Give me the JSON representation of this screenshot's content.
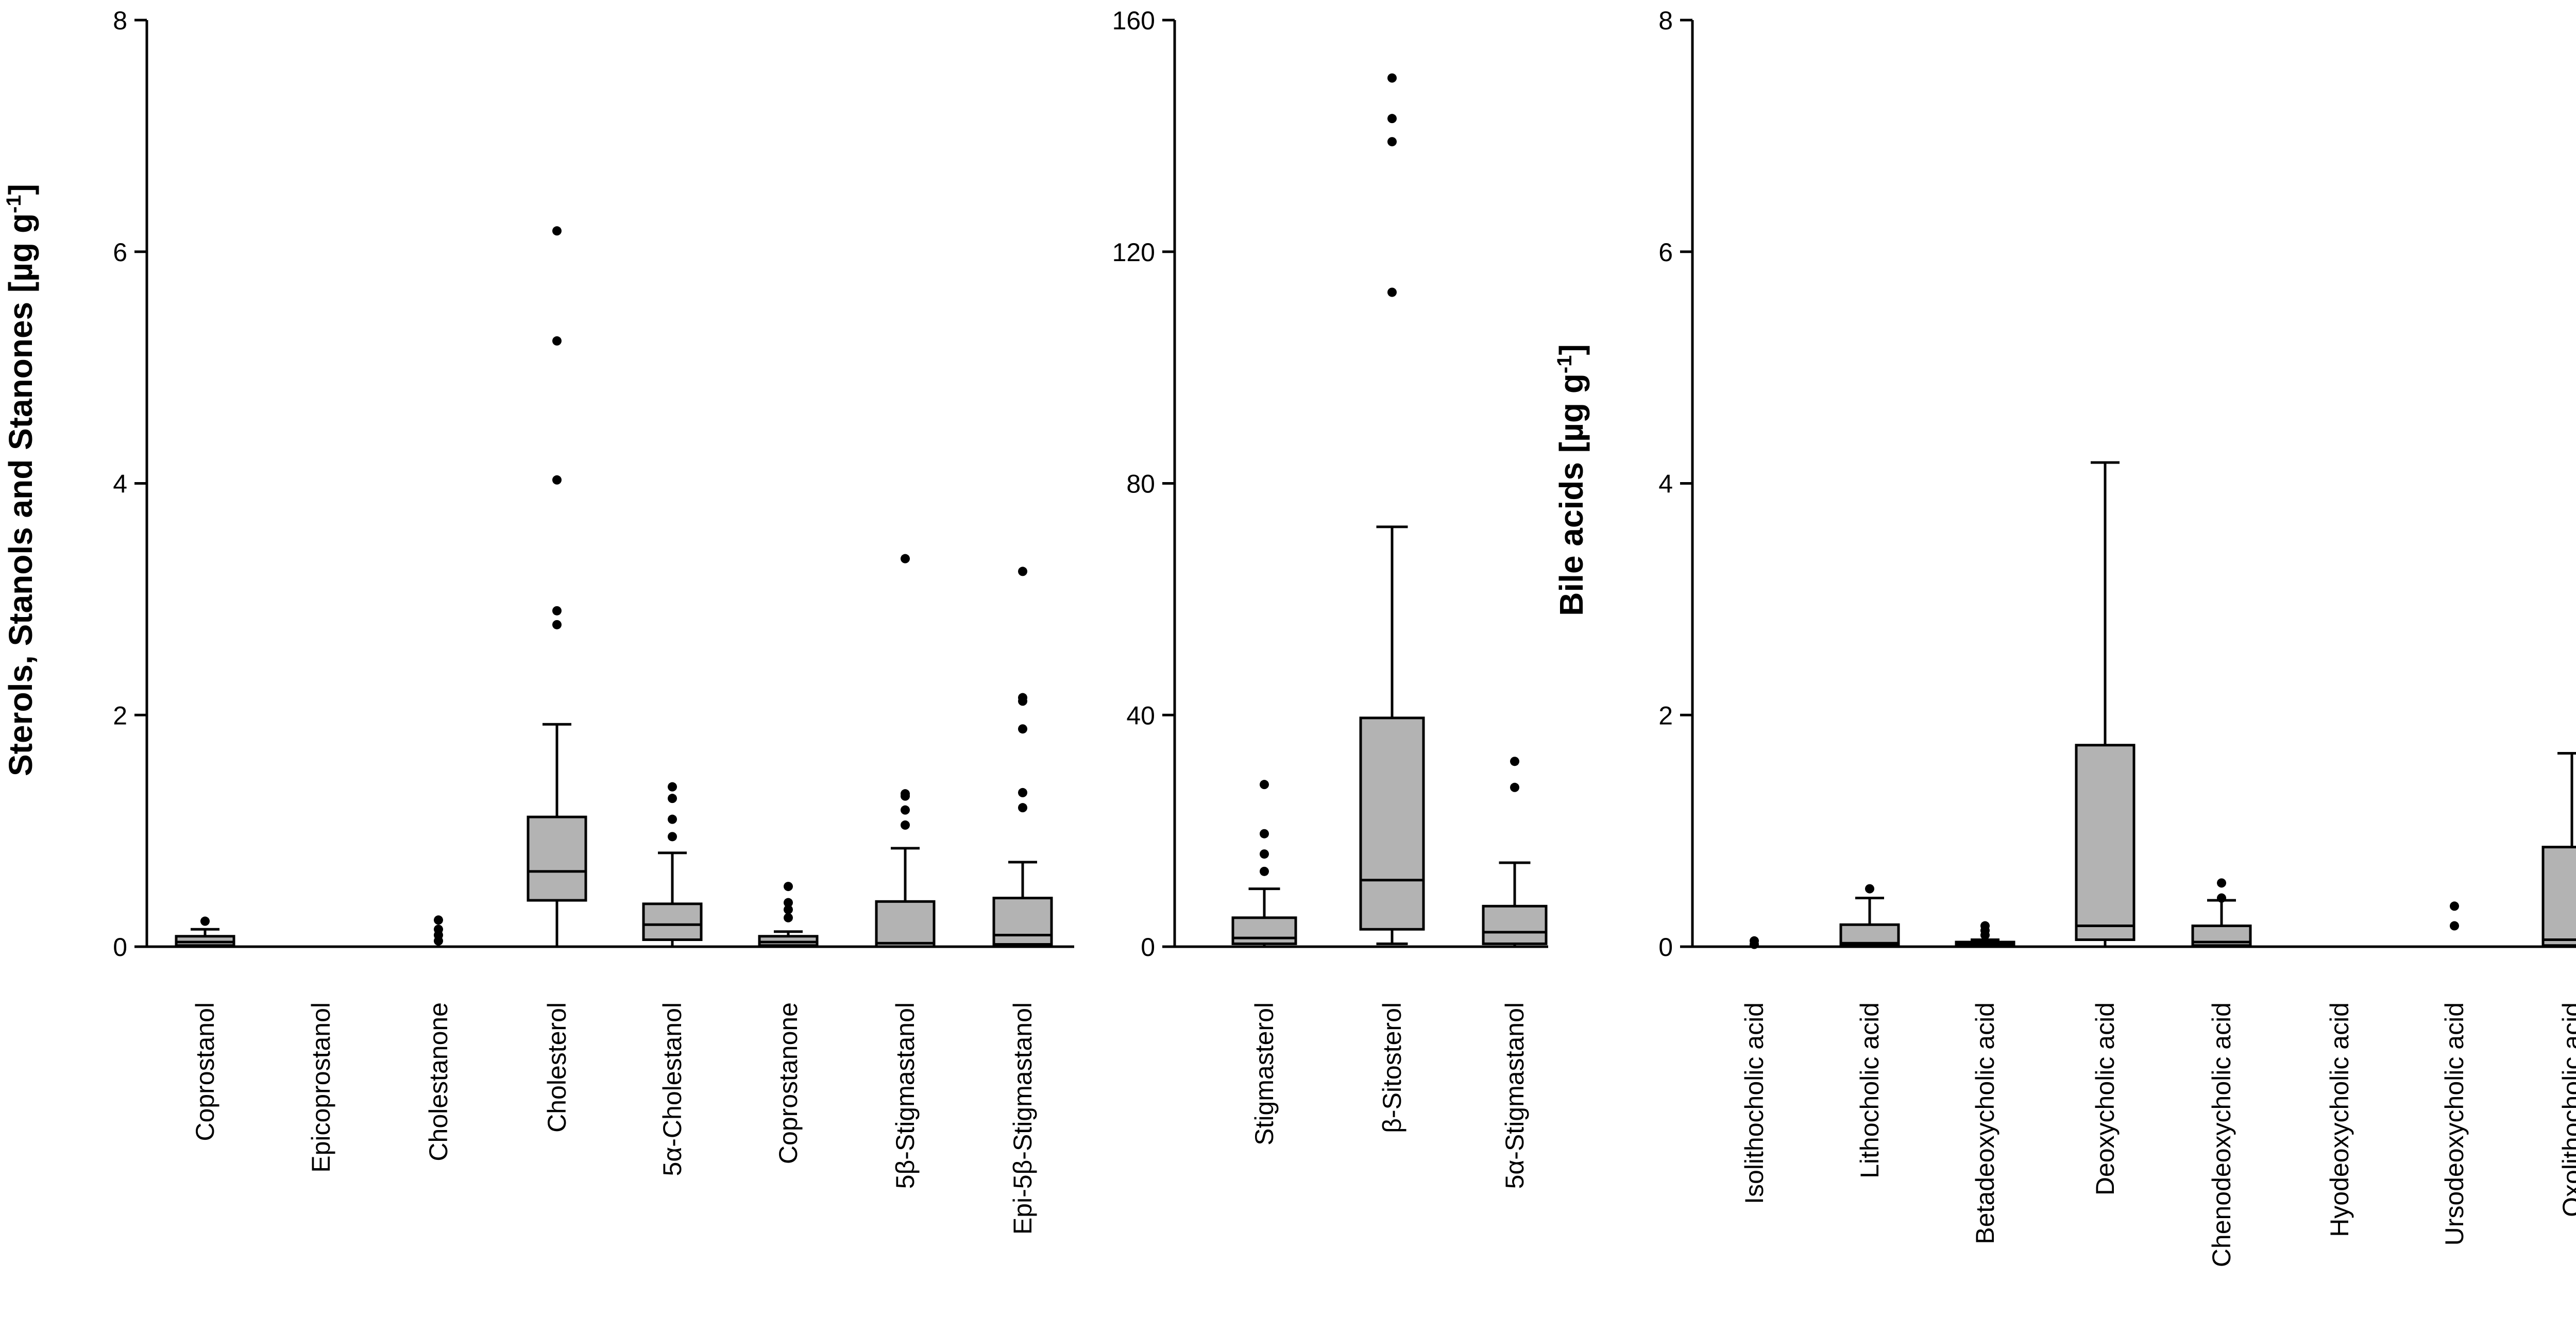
{
  "chart_data": [
    {
      "type": "box",
      "ylabel": "Sterols, Stanols and Stanones [µg g-1]",
      "ylabel_main": "Sterols, Stanols and Stanones [µg g",
      "ylabel_sup": "-1",
      "ylabel_end": "]",
      "ylim": [
        0,
        8
      ],
      "yticks": [
        0,
        2,
        4,
        6,
        8
      ],
      "ytick_labels": [
        "0",
        "2",
        "4",
        "6",
        "8"
      ],
      "boxes": [
        {
          "category": "Coprostanol",
          "whisker_low": 0,
          "q1": 0.01,
          "median": 0.04,
          "q3": 0.09,
          "whisker_high": 0.15,
          "outliers": [
            0.22
          ]
        },
        {
          "category": "Epicoprostanol",
          "whisker_low": 0,
          "q1": 0,
          "median": 0,
          "q3": 0,
          "whisker_high": 0,
          "outliers": []
        },
        {
          "category": "Cholestanone",
          "whisker_low": 0,
          "q1": 0,
          "median": 0,
          "q3": 0,
          "whisker_high": 0,
          "outliers": [
            0.05,
            0.1,
            0.15,
            0.23
          ]
        },
        {
          "category": "Cholesterol",
          "whisker_low": 0,
          "q1": 0.4,
          "median": 0.65,
          "q3": 1.12,
          "whisker_high": 1.92,
          "outliers": [
            2.78,
            2.9,
            4.03,
            5.23,
            6.18
          ]
        },
        {
          "category": "5α-Cholestanol",
          "whisker_low": 0,
          "q1": 0.06,
          "median": 0.19,
          "q3": 0.37,
          "whisker_high": 0.81,
          "outliers": [
            0.95,
            1.1,
            1.28,
            1.38
          ]
        },
        {
          "category": "Coprostanone",
          "whisker_low": 0,
          "q1": 0.01,
          "median": 0.04,
          "q3": 0.09,
          "whisker_high": 0.13,
          "outliers": [
            0.25,
            0.32,
            0.38,
            0.52
          ]
        },
        {
          "category": "5β-Stigmastanol",
          "whisker_low": 0,
          "q1": 0,
          "median": 0.03,
          "q3": 0.39,
          "whisker_high": 0.85,
          "outliers": [
            1.05,
            1.18,
            1.3,
            1.32,
            3.35
          ]
        },
        {
          "category": "Epi-5β-Stigmastanol",
          "whisker_low": 0,
          "q1": 0.02,
          "median": 0.1,
          "q3": 0.42,
          "whisker_high": 0.73,
          "outliers": [
            1.2,
            1.33,
            1.88,
            2.12,
            2.15,
            3.24
          ]
        }
      ]
    },
    {
      "type": "box",
      "ylabel": "",
      "ylim": [
        0,
        160
      ],
      "yticks": [
        0,
        40,
        80,
        120,
        160
      ],
      "ytick_labels": [
        "0",
        "40",
        "80",
        "120",
        "160"
      ],
      "boxes": [
        {
          "category": "Stigmasterol",
          "whisker_low": 0,
          "q1": 0.5,
          "median": 1.5,
          "q3": 5,
          "whisker_high": 10,
          "outliers": [
            13,
            16,
            19.5,
            28
          ]
        },
        {
          "category": "β-Sitosterol",
          "whisker_low": 0.5,
          "q1": 3,
          "median": 11.5,
          "q3": 39.5,
          "whisker_high": 72.5,
          "outliers": [
            113,
            139,
            143,
            150
          ]
        },
        {
          "category": "5α-Stigmastanol",
          "whisker_low": 0,
          "q1": 0.5,
          "median": 2.5,
          "q3": 7,
          "whisker_high": 14.5,
          "outliers": [
            27.5,
            32
          ]
        }
      ]
    },
    {
      "type": "box",
      "ylabel": "Bile acids [µg g-1]",
      "ylabel_main": "Bile acids [µg g",
      "ylabel_sup": "-1",
      "ylabel_end": "]",
      "ylim": [
        0,
        8
      ],
      "yticks": [
        0,
        2,
        4,
        6,
        8
      ],
      "ytick_labels": [
        "0",
        "2",
        "4",
        "6",
        "8"
      ],
      "boxes": [
        {
          "category": "Isolithocholic acid",
          "whisker_low": 0,
          "q1": 0,
          "median": 0,
          "q3": 0,
          "whisker_high": 0,
          "outliers": [
            0.02,
            0.05
          ]
        },
        {
          "category": "Lithocholic acid",
          "whisker_low": 0,
          "q1": 0.01,
          "median": 0.03,
          "q3": 0.19,
          "whisker_high": 0.42,
          "outliers": [
            0.5
          ]
        },
        {
          "category": "Betadeoxycholic acid",
          "whisker_low": 0,
          "q1": 0.01,
          "median": 0.02,
          "q3": 0.04,
          "whisker_high": 0.06,
          "outliers": [
            0.1,
            0.14,
            0.18
          ]
        },
        {
          "category": "Deoxycholic acid",
          "whisker_low": 0,
          "q1": 0.06,
          "median": 0.18,
          "q3": 1.74,
          "whisker_high": 4.18,
          "outliers": []
        },
        {
          "category": "Chenodeoxycholic acid",
          "whisker_low": 0,
          "q1": 0.01,
          "median": 0.04,
          "q3": 0.18,
          "whisker_high": 0.4,
          "outliers": [
            0.42,
            0.55
          ]
        },
        {
          "category": "Hyodeoxycholic acid",
          "whisker_low": 0,
          "q1": 0,
          "median": 0,
          "q3": 0,
          "whisker_high": 0,
          "outliers": []
        },
        {
          "category": "Ursodeoxycholic acid",
          "whisker_low": 0,
          "q1": 0,
          "median": 0,
          "q3": 0,
          "whisker_high": 0,
          "outliers": [
            0.18,
            0.35
          ]
        },
        {
          "category": "Oxolithocholic acid",
          "whisker_low": 0,
          "q1": 0.01,
          "median": 0.06,
          "q3": 0.86,
          "whisker_high": 1.67,
          "outliers": []
        }
      ]
    }
  ],
  "colors": {
    "box_fill": "#b3b3b3",
    "stroke": "#000000",
    "background": "#ffffff"
  }
}
